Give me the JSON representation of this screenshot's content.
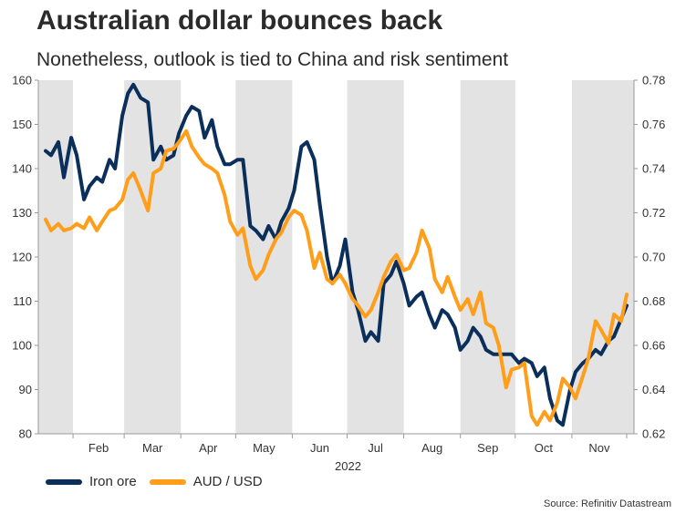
{
  "chart_data": {
    "type": "line",
    "title": "Australian dollar bounces back",
    "subtitle": "Nonetheless, outlook is tied to China and risk sentiment",
    "source": "Source: Refinitiv Datastream",
    "xlabel": "2022",
    "month_labels": [
      "Feb",
      "Mar",
      "Apr",
      "May",
      "Jun",
      "Jul",
      "Aug",
      "Sep",
      "Oct",
      "Nov"
    ],
    "left_axis": {
      "ylim": [
        80,
        160
      ],
      "ticks": [
        "80",
        "90",
        "100",
        "110",
        "120",
        "130",
        "140",
        "150",
        "160"
      ]
    },
    "right_axis": {
      "ylim": [
        0.62,
        0.78
      ],
      "ticks": [
        "0.62",
        "0.64",
        "0.66",
        "0.68",
        "0.70",
        "0.72",
        "0.74",
        "0.76",
        "0.78"
      ]
    },
    "shaded_months": [
      "Jan",
      "Mar",
      "May",
      "Jul",
      "Sep",
      "Nov"
    ],
    "grid": false,
    "legend_position": "bottom-left",
    "series": [
      {
        "name": "Iron ore",
        "axis": "left",
        "color": "#0b2f5b",
        "points": [
          [
            "2022-01-17",
            144
          ],
          [
            "2022-01-20",
            143
          ],
          [
            "2022-01-24",
            146
          ],
          [
            "2022-01-27",
            138
          ],
          [
            "2022-01-31",
            147
          ],
          [
            "2022-02-03",
            143
          ],
          [
            "2022-02-07",
            133
          ],
          [
            "2022-02-10",
            136
          ],
          [
            "2022-02-14",
            138
          ],
          [
            "2022-02-17",
            137
          ],
          [
            "2022-02-21",
            142
          ],
          [
            "2022-02-24",
            140
          ],
          [
            "2022-02-28",
            152
          ],
          [
            "2022-03-03",
            157
          ],
          [
            "2022-03-06",
            159
          ],
          [
            "2022-03-10",
            156
          ],
          [
            "2022-03-14",
            155
          ],
          [
            "2022-03-17",
            142
          ],
          [
            "2022-03-21",
            145
          ],
          [
            "2022-03-24",
            142
          ],
          [
            "2022-03-28",
            143
          ],
          [
            "2022-03-31",
            148
          ],
          [
            "2022-04-04",
            152
          ],
          [
            "2022-04-07",
            154
          ],
          [
            "2022-04-11",
            153
          ],
          [
            "2022-04-14",
            147
          ],
          [
            "2022-04-18",
            151
          ],
          [
            "2022-04-21",
            145
          ],
          [
            "2022-04-25",
            141
          ],
          [
            "2022-04-28",
            141
          ],
          [
            "2022-05-02",
            142
          ],
          [
            "2022-05-05",
            142
          ],
          [
            "2022-05-09",
            127
          ],
          [
            "2022-05-12",
            126
          ],
          [
            "2022-05-16",
            124
          ],
          [
            "2022-05-19",
            127
          ],
          [
            "2022-05-23",
            124
          ],
          [
            "2022-05-26",
            128
          ],
          [
            "2022-05-30",
            131
          ],
          [
            "2022-06-02",
            135
          ],
          [
            "2022-06-06",
            145
          ],
          [
            "2022-06-09",
            146
          ],
          [
            "2022-06-13",
            142
          ],
          [
            "2022-06-16",
            132
          ],
          [
            "2022-06-20",
            120
          ],
          [
            "2022-06-23",
            114
          ],
          [
            "2022-06-27",
            118
          ],
          [
            "2022-06-30",
            124
          ],
          [
            "2022-07-04",
            112
          ],
          [
            "2022-07-07",
            108
          ],
          [
            "2022-07-11",
            101
          ],
          [
            "2022-07-14",
            103
          ],
          [
            "2022-07-18",
            101
          ],
          [
            "2022-07-21",
            114
          ],
          [
            "2022-07-25",
            116
          ],
          [
            "2022-07-28",
            119
          ],
          [
            "2022-08-01",
            114
          ],
          [
            "2022-08-04",
            109
          ],
          [
            "2022-08-08",
            111
          ],
          [
            "2022-08-11",
            112
          ],
          [
            "2022-08-15",
            107
          ],
          [
            "2022-08-18",
            104
          ],
          [
            "2022-08-22",
            108
          ],
          [
            "2022-08-25",
            107
          ],
          [
            "2022-08-29",
            104
          ],
          [
            "2022-09-01",
            99
          ],
          [
            "2022-09-05",
            101
          ],
          [
            "2022-09-08",
            104
          ],
          [
            "2022-09-12",
            102
          ],
          [
            "2022-09-15",
            99
          ],
          [
            "2022-09-19",
            98
          ],
          [
            "2022-09-22",
            98
          ],
          [
            "2022-09-26",
            98
          ],
          [
            "2022-09-29",
            98
          ],
          [
            "2022-10-03",
            96
          ],
          [
            "2022-10-06",
            97
          ],
          [
            "2022-10-10",
            96
          ],
          [
            "2022-10-13",
            93
          ],
          [
            "2022-10-17",
            95
          ],
          [
            "2022-10-20",
            88
          ],
          [
            "2022-10-24",
            83
          ],
          [
            "2022-10-27",
            82
          ],
          [
            "2022-10-31",
            90
          ],
          [
            "2022-11-03",
            94
          ],
          [
            "2022-11-07",
            96
          ],
          [
            "2022-11-10",
            97
          ],
          [
            "2022-11-14",
            99
          ],
          [
            "2022-11-17",
            98
          ],
          [
            "2022-11-21",
            101
          ],
          [
            "2022-11-24",
            102
          ],
          [
            "2022-11-28",
            106
          ],
          [
            "2022-12-01",
            109
          ]
        ]
      },
      {
        "name": "AUD / USD",
        "axis": "right",
        "color": "#ff9e1b",
        "points": [
          [
            "2022-01-17",
            0.717
          ],
          [
            "2022-01-20",
            0.712
          ],
          [
            "2022-01-24",
            0.715
          ],
          [
            "2022-01-27",
            0.712
          ],
          [
            "2022-01-31",
            0.713
          ],
          [
            "2022-02-03",
            0.715
          ],
          [
            "2022-02-07",
            0.713
          ],
          [
            "2022-02-10",
            0.718
          ],
          [
            "2022-02-14",
            0.712
          ],
          [
            "2022-02-17",
            0.716
          ],
          [
            "2022-02-21",
            0.721
          ],
          [
            "2022-02-24",
            0.722
          ],
          [
            "2022-02-28",
            0.726
          ],
          [
            "2022-03-03",
            0.735
          ],
          [
            "2022-03-06",
            0.738
          ],
          [
            "2022-03-10",
            0.73
          ],
          [
            "2022-03-14",
            0.721
          ],
          [
            "2022-03-17",
            0.738
          ],
          [
            "2022-03-21",
            0.74
          ],
          [
            "2022-03-24",
            0.748
          ],
          [
            "2022-03-28",
            0.749
          ],
          [
            "2022-03-31",
            0.752
          ],
          [
            "2022-04-04",
            0.757
          ],
          [
            "2022-04-07",
            0.75
          ],
          [
            "2022-04-11",
            0.745
          ],
          [
            "2022-04-14",
            0.742
          ],
          [
            "2022-04-18",
            0.74
          ],
          [
            "2022-04-21",
            0.738
          ],
          [
            "2022-04-25",
            0.728
          ],
          [
            "2022-04-28",
            0.716
          ],
          [
            "2022-05-02",
            0.71
          ],
          [
            "2022-05-05",
            0.713
          ],
          [
            "2022-05-09",
            0.696
          ],
          [
            "2022-05-12",
            0.69
          ],
          [
            "2022-05-16",
            0.694
          ],
          [
            "2022-05-19",
            0.701
          ],
          [
            "2022-05-23",
            0.708
          ],
          [
            "2022-05-26",
            0.711
          ],
          [
            "2022-05-30",
            0.718
          ],
          [
            "2022-06-02",
            0.721
          ],
          [
            "2022-06-06",
            0.719
          ],
          [
            "2022-06-09",
            0.712
          ],
          [
            "2022-06-13",
            0.695
          ],
          [
            "2022-06-16",
            0.702
          ],
          [
            "2022-06-20",
            0.69
          ],
          [
            "2022-06-23",
            0.688
          ],
          [
            "2022-06-27",
            0.692
          ],
          [
            "2022-06-30",
            0.688
          ],
          [
            "2022-07-04",
            0.681
          ],
          [
            "2022-07-07",
            0.678
          ],
          [
            "2022-07-11",
            0.673
          ],
          [
            "2022-07-14",
            0.676
          ],
          [
            "2022-07-18",
            0.684
          ],
          [
            "2022-07-21",
            0.691
          ],
          [
            "2022-07-25",
            0.698
          ],
          [
            "2022-07-28",
            0.701
          ],
          [
            "2022-08-01",
            0.694
          ],
          [
            "2022-08-04",
            0.695
          ],
          [
            "2022-08-08",
            0.702
          ],
          [
            "2022-08-11",
            0.712
          ],
          [
            "2022-08-15",
            0.704
          ],
          [
            "2022-08-18",
            0.69
          ],
          [
            "2022-08-22",
            0.684
          ],
          [
            "2022-08-25",
            0.691
          ],
          [
            "2022-08-29",
            0.682
          ],
          [
            "2022-09-01",
            0.676
          ],
          [
            "2022-09-05",
            0.681
          ],
          [
            "2022-09-08",
            0.674
          ],
          [
            "2022-09-12",
            0.684
          ],
          [
            "2022-09-15",
            0.67
          ],
          [
            "2022-09-19",
            0.668
          ],
          [
            "2022-09-22",
            0.66
          ],
          [
            "2022-09-26",
            0.641
          ],
          [
            "2022-09-29",
            0.649
          ],
          [
            "2022-10-03",
            0.65
          ],
          [
            "2022-10-06",
            0.652
          ],
          [
            "2022-10-10",
            0.628
          ],
          [
            "2022-10-13",
            0.624
          ],
          [
            "2022-10-17",
            0.63
          ],
          [
            "2022-10-20",
            0.626
          ],
          [
            "2022-10-24",
            0.634
          ],
          [
            "2022-10-27",
            0.645
          ],
          [
            "2022-10-31",
            0.641
          ],
          [
            "2022-11-03",
            0.636
          ],
          [
            "2022-11-07",
            0.646
          ],
          [
            "2022-11-10",
            0.654
          ],
          [
            "2022-11-14",
            0.671
          ],
          [
            "2022-11-17",
            0.667
          ],
          [
            "2022-11-21",
            0.661
          ],
          [
            "2022-11-24",
            0.674
          ],
          [
            "2022-11-28",
            0.671
          ],
          [
            "2022-12-01",
            0.683
          ]
        ]
      }
    ]
  }
}
